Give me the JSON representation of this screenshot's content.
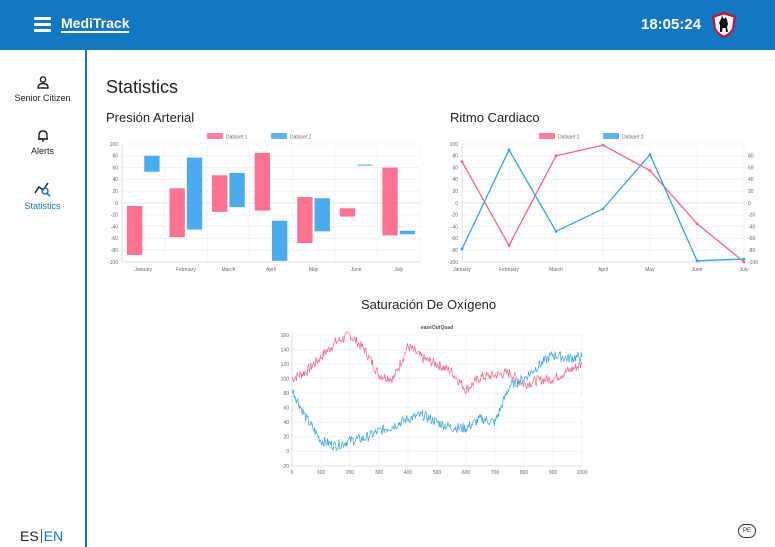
{
  "app": {
    "brand": "MediTrack",
    "clock": "18:05:24",
    "page_title": "Statistics",
    "pe_badge": "PE"
  },
  "sidebar": {
    "items": [
      {
        "label": "Senior Citizen",
        "icon": "person-icon"
      },
      {
        "label": "Alerts",
        "icon": "bell-icon"
      },
      {
        "label": "Statistics",
        "icon": "chart-search-icon",
        "active": true
      }
    ],
    "lang": {
      "es": "ES",
      "en": "EN",
      "active": "EN"
    }
  },
  "colors": {
    "accent": "#1477c4",
    "series1": "#ff6384",
    "series2": "#36a2eb"
  },
  "charts": {
    "pressure_title": "Presión Arterial",
    "heart_title": "Ritmo Cardiaco",
    "oxygen_title": "Saturación De Oxígeno"
  },
  "chart_data": [
    {
      "type": "bar",
      "title": "",
      "categories": [
        "January",
        "February",
        "March",
        "April",
        "May",
        "June",
        "July"
      ],
      "ylim": [
        -100,
        100
      ],
      "yticks": [
        100,
        80,
        60,
        40,
        20,
        0,
        -20,
        -40,
        -60,
        -80,
        -100
      ],
      "legend": "top-center",
      "grid": true,
      "series": [
        {
          "name": "Dataset 1",
          "color": "#ff6384",
          "ranges": [
            [
              -5,
              -88
            ],
            [
              25,
              -58
            ],
            [
              47,
              -15
            ],
            [
              85,
              -13
            ],
            [
              10,
              -68
            ],
            [
              -9,
              -23
            ],
            [
              60,
              -55
            ]
          ]
        },
        {
          "name": "Dataset 2",
          "color": "#36a2eb",
          "ranges": [
            [
              80,
              53
            ],
            [
              77,
              -45
            ],
            [
              51,
              -7
            ],
            [
              -30,
              -98
            ],
            [
              8,
              -48
            ],
            [
              65,
              64
            ],
            [
              -47,
              -53
            ]
          ]
        }
      ]
    },
    {
      "type": "line",
      "title": "",
      "categories": [
        "January",
        "February",
        "March",
        "April",
        "May",
        "June",
        "July"
      ],
      "ylim": [
        -100,
        100
      ],
      "yticks": [
        100,
        80,
        60,
        40,
        20,
        0,
        -20,
        -40,
        -60,
        -80,
        -100
      ],
      "y2ticks": [
        80,
        60,
        40,
        20,
        0,
        -20,
        -40,
        -60,
        -80,
        -100
      ],
      "legend": "top-center",
      "grid": true,
      "series": [
        {
          "name": "Dataset 1",
          "color": "#ff6384",
          "values": [
            70,
            -72,
            80,
            98,
            55,
            -35,
            -100
          ]
        },
        {
          "name": "Dataset 2",
          "color": "#36a2eb",
          "values": [
            -78,
            90,
            -48,
            -10,
            82,
            -98,
            -95
          ]
        }
      ]
    },
    {
      "type": "line",
      "title": "easeOutQuad",
      "xlim": [
        0,
        1000
      ],
      "ylim": [
        -20,
        160
      ],
      "xticks": [
        0,
        100,
        200,
        300,
        400,
        500,
        600,
        700,
        800,
        900,
        1000
      ],
      "yticks": [
        160,
        140,
        120,
        100,
        80,
        60,
        40,
        20,
        0,
        -20
      ],
      "grid": true,
      "series": [
        {
          "color": "#ff6384",
          "x": [
            0,
            50,
            100,
            150,
            200,
            250,
            300,
            350,
            400,
            450,
            500,
            550,
            600,
            650,
            700,
            750,
            800,
            850,
            900,
            950,
            1000
          ],
          "values": [
            100,
            110,
            130,
            150,
            160,
            140,
            105,
            100,
            145,
            128,
            120,
            110,
            85,
            102,
            105,
            108,
            92,
            98,
            100,
            110,
            120
          ]
        },
        {
          "color": "#36a2eb",
          "x": [
            0,
            50,
            100,
            150,
            200,
            250,
            300,
            350,
            400,
            450,
            500,
            550,
            600,
            650,
            700,
            750,
            800,
            850,
            900,
            950,
            1000
          ],
          "values": [
            85,
            45,
            15,
            8,
            15,
            18,
            28,
            35,
            45,
            50,
            40,
            33,
            32,
            45,
            40,
            90,
            100,
            118,
            133,
            128,
            130
          ]
        }
      ]
    }
  ]
}
